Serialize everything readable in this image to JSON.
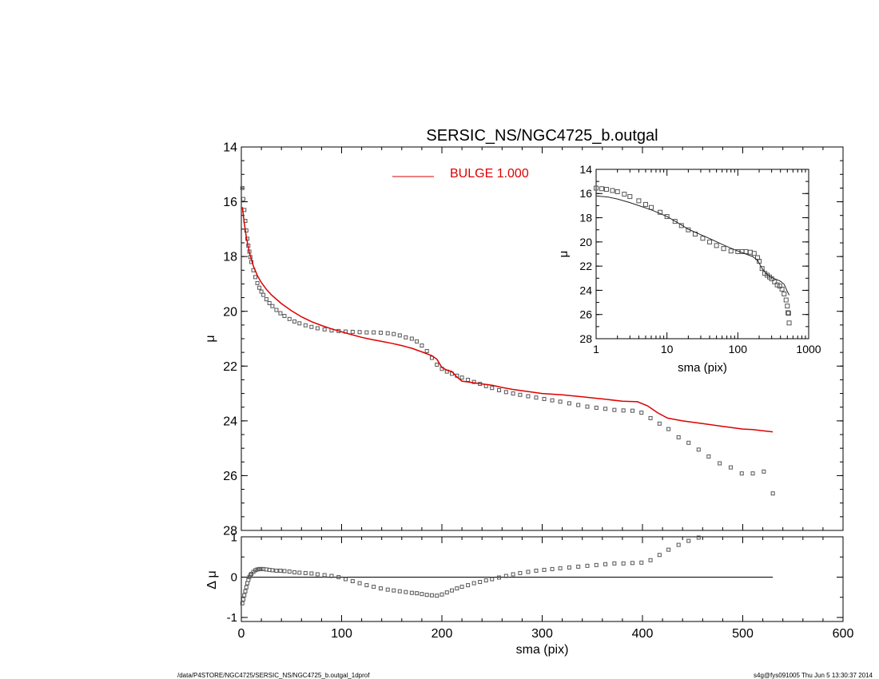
{
  "footer": {
    "left": "/data/P4STORE/NGC4725/SERSIC_NS/NGC4725_b.outgal_1dprof",
    "right": "s4g@fys091005  Thu Jun  5 13:30:37 2014"
  },
  "colors": {
    "model": "#dd0000",
    "data": "#555555",
    "axis": "#000000"
  },
  "chart_data": [
    {
      "id": "main",
      "type": "scatter",
      "title": "SERSIC_NS/NGC4725_b.outgal",
      "xlabel": "",
      "ylabel": "μ",
      "xlim": [
        0,
        600
      ],
      "ylim": [
        28,
        14
      ],
      "yticks": [
        14,
        16,
        18,
        20,
        22,
        24,
        26,
        28
      ],
      "legend": {
        "label": "BULGE  1.000",
        "color": "#dd0000",
        "placement": "top-center"
      },
      "series": [
        {
          "name": "",
          "kind": "points",
          "x": [
            1,
            2,
            3,
            4,
            5,
            6,
            7,
            8,
            9,
            10,
            12,
            14,
            16,
            18,
            20,
            22,
            25,
            28,
            31,
            35,
            39,
            43,
            48,
            53,
            58,
            64,
            70,
            76,
            83,
            90,
            97,
            104,
            111,
            118,
            125,
            132,
            139,
            146,
            152,
            158,
            164,
            170,
            175,
            180,
            185,
            190,
            195,
            200,
            205,
            210,
            215,
            220,
            226,
            232,
            238,
            244,
            250,
            257,
            264,
            271,
            278,
            286,
            294,
            302,
            310,
            318,
            327,
            336,
            345,
            354,
            363,
            372,
            381,
            390,
            399,
            408,
            417,
            426,
            436,
            446,
            456,
            466,
            477,
            488,
            499,
            510,
            521,
            530
          ],
          "y": [
            15.5,
            15.9,
            16.3,
            16.7,
            17.05,
            17.35,
            17.6,
            17.82,
            18.02,
            18.2,
            18.5,
            18.75,
            18.97,
            19.14,
            19.28,
            19.4,
            19.56,
            19.7,
            19.81,
            19.95,
            20.07,
            20.17,
            20.28,
            20.37,
            20.44,
            20.51,
            20.57,
            20.62,
            20.66,
            20.7,
            20.72,
            20.74,
            20.75,
            20.76,
            20.77,
            20.77,
            20.78,
            20.8,
            20.83,
            20.88,
            20.95,
            21.0,
            21.1,
            21.25,
            21.45,
            21.7,
            21.95,
            22.1,
            22.2,
            22.28,
            22.35,
            22.42,
            22.5,
            22.58,
            22.65,
            22.73,
            22.8,
            22.88,
            22.95,
            23.0,
            23.05,
            23.1,
            23.15,
            23.2,
            23.25,
            23.3,
            23.36,
            23.42,
            23.48,
            23.52,
            23.56,
            23.6,
            23.62,
            23.63,
            23.7,
            23.9,
            24.1,
            24.3,
            24.6,
            24.8,
            25.05,
            25.3,
            25.55,
            25.7,
            25.92,
            25.92,
            25.85,
            26.65
          ]
        },
        {
          "name": "BULGE  1.000",
          "kind": "line",
          "x": [
            1,
            3,
            5,
            8,
            12,
            16,
            20,
            25,
            30,
            40,
            50,
            60,
            70,
            80,
            90,
            100,
            110,
            120,
            130,
            140,
            150,
            160,
            170,
            180,
            190,
            195,
            200,
            205,
            210,
            215,
            220,
            230,
            240,
            250,
            260,
            270,
            280,
            290,
            300,
            320,
            340,
            360,
            380,
            395,
            405,
            415,
            425,
            440,
            460,
            480,
            500,
            510,
            520,
            530
          ],
          "y": [
            16.2,
            16.8,
            17.3,
            17.85,
            18.35,
            18.7,
            18.95,
            19.2,
            19.4,
            19.72,
            19.98,
            20.2,
            20.38,
            20.52,
            20.64,
            20.75,
            20.85,
            20.95,
            21.03,
            21.1,
            21.17,
            21.25,
            21.35,
            21.48,
            21.62,
            21.75,
            22.05,
            22.15,
            22.2,
            22.4,
            22.55,
            22.6,
            22.65,
            22.7,
            22.78,
            22.85,
            22.9,
            22.95,
            23.0,
            23.05,
            23.12,
            23.2,
            23.28,
            23.3,
            23.45,
            23.7,
            23.9,
            24.0,
            24.1,
            24.2,
            24.3,
            24.32,
            24.36,
            24.4
          ]
        }
      ]
    },
    {
      "id": "residual",
      "type": "scatter",
      "title": "",
      "xlabel": "sma (pix)",
      "ylabel": "Δ μ",
      "xlim": [
        0,
        600
      ],
      "ylim": [
        -1.1,
        1.0
      ],
      "xticks": [
        0,
        100,
        200,
        300,
        400,
        500,
        600
      ],
      "yticks": [
        -1,
        0,
        1
      ],
      "reference_line": {
        "y": 0,
        "x": [
          0,
          530
        ]
      },
      "series": [
        {
          "name": "",
          "kind": "points",
          "x": [
            1,
            2,
            3,
            4,
            5,
            6,
            7,
            8,
            9,
            10,
            12,
            14,
            16,
            18,
            20,
            22,
            25,
            28,
            31,
            35,
            39,
            43,
            48,
            53,
            58,
            64,
            70,
            76,
            83,
            90,
            97,
            104,
            111,
            118,
            125,
            132,
            139,
            146,
            152,
            158,
            164,
            170,
            175,
            180,
            185,
            190,
            195,
            200,
            205,
            210,
            215,
            220,
            226,
            232,
            238,
            244,
            250,
            257,
            264,
            271,
            278,
            286,
            294,
            302,
            310,
            318,
            327,
            336,
            345,
            354,
            363,
            372,
            381,
            390,
            399,
            408,
            417,
            426,
            436,
            446,
            456
          ],
          "y": [
            -0.65,
            -0.55,
            -0.45,
            -0.35,
            -0.25,
            -0.15,
            -0.07,
            0.0,
            0.05,
            0.08,
            0.13,
            0.17,
            0.19,
            0.2,
            0.2,
            0.2,
            0.19,
            0.18,
            0.17,
            0.16,
            0.16,
            0.15,
            0.14,
            0.12,
            0.11,
            0.1,
            0.09,
            0.07,
            0.05,
            0.03,
            0.0,
            -0.05,
            -0.1,
            -0.15,
            -0.2,
            -0.24,
            -0.28,
            -0.31,
            -0.33,
            -0.35,
            -0.37,
            -0.39,
            -0.4,
            -0.42,
            -0.44,
            -0.45,
            -0.46,
            -0.43,
            -0.38,
            -0.33,
            -0.28,
            -0.24,
            -0.2,
            -0.15,
            -0.12,
            -0.08,
            -0.05,
            -0.01,
            0.03,
            0.07,
            0.1,
            0.13,
            0.16,
            0.18,
            0.2,
            0.22,
            0.24,
            0.26,
            0.28,
            0.3,
            0.32,
            0.34,
            0.34,
            0.35,
            0.36,
            0.42,
            0.55,
            0.68,
            0.8,
            0.9,
            0.98
          ]
        }
      ]
    },
    {
      "id": "inset",
      "type": "scatter",
      "title": "",
      "xlabel": "sma (pix)",
      "ylabel": "μ",
      "xscale": "log",
      "xlim": [
        1,
        1000
      ],
      "ylim": [
        28,
        14
      ],
      "xticks": [
        1,
        10,
        100,
        1000
      ],
      "yticks": [
        14,
        16,
        18,
        20,
        22,
        24,
        26,
        28
      ],
      "series": [
        {
          "name": "",
          "kind": "points",
          "x": [
            1.0,
            1.2,
            1.4,
            1.7,
            2.0,
            2.5,
            3.0,
            4.0,
            5.0,
            6.0,
            8.0,
            10,
            13,
            16,
            20,
            25,
            32,
            40,
            50,
            63,
            80,
            100,
            115,
            130,
            150,
            170,
            190,
            200,
            220,
            240,
            260,
            280,
            300,
            330,
            360,
            390,
            420,
            450,
            480,
            500,
            510,
            520,
            530
          ],
          "y": [
            15.55,
            15.6,
            15.65,
            15.75,
            15.85,
            16.05,
            16.25,
            16.6,
            16.9,
            17.15,
            17.55,
            17.9,
            18.3,
            18.65,
            19.0,
            19.35,
            19.7,
            20.0,
            20.3,
            20.55,
            20.75,
            20.8,
            20.8,
            20.8,
            20.85,
            20.95,
            21.3,
            21.6,
            22.2,
            22.6,
            22.75,
            22.9,
            23.05,
            23.3,
            23.55,
            23.65,
            23.9,
            24.3,
            24.8,
            25.3,
            25.85,
            25.9,
            26.7
          ]
        },
        {
          "name": "",
          "kind": "line",
          "x": [
            1.0,
            1.5,
            2.0,
            3.0,
            4.0,
            6.0,
            8.0,
            10,
            15,
            20,
            30,
            40,
            60,
            80,
            100,
            130,
            160,
            190,
            200,
            220,
            250,
            300,
            350,
            400,
            450,
            500,
            530
          ],
          "y": [
            16.2,
            16.3,
            16.45,
            16.75,
            17.0,
            17.35,
            17.65,
            17.9,
            18.5,
            18.95,
            19.4,
            19.72,
            20.2,
            20.52,
            20.75,
            21.0,
            21.2,
            21.5,
            21.75,
            22.2,
            22.6,
            22.95,
            23.1,
            23.25,
            23.5,
            24.1,
            24.4
          ]
        }
      ]
    }
  ]
}
